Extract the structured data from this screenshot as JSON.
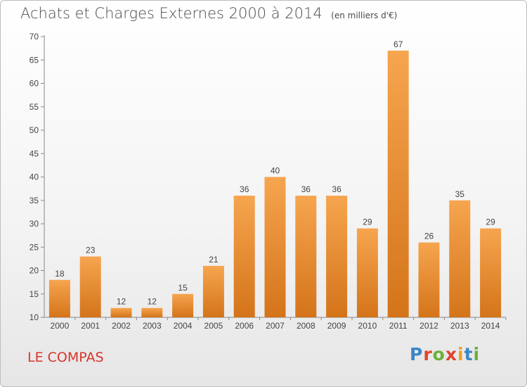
{
  "header": {
    "title": "Achats et Charges Externes 2000 à 2014",
    "unit": "(en milliers d'€)"
  },
  "footer": {
    "commune": "LE COMPAS",
    "brand": "Proxiti"
  },
  "colors": {
    "bar_light": "#f6a54f",
    "bar_dark": "#d4741a",
    "title": "#4a4a4a",
    "commune": "#d9342b",
    "brand_letters": [
      "#3a86c8",
      "#e0422e",
      "#6bb03a",
      "#e0422e",
      "#f0a020",
      "#3a86c8",
      "#6bb03a"
    ]
  },
  "chart_data": {
    "type": "bar",
    "categories": [
      "2000",
      "2001",
      "2002",
      "2003",
      "2004",
      "2005",
      "2006",
      "2007",
      "2008",
      "2009",
      "2010",
      "2011",
      "2012",
      "2013",
      "2014"
    ],
    "values": [
      18,
      23,
      12,
      12,
      15,
      21,
      36,
      40,
      36,
      36,
      29,
      67,
      26,
      35,
      29
    ],
    "title": "Achats et Charges Externes 2000 à 2014",
    "unit": "(en milliers d'€)",
    "ylim": [
      10,
      70
    ],
    "yticks": [
      10,
      15,
      20,
      25,
      30,
      35,
      40,
      45,
      50,
      55,
      60,
      65,
      70
    ],
    "grid": false,
    "data_labels": true
  }
}
